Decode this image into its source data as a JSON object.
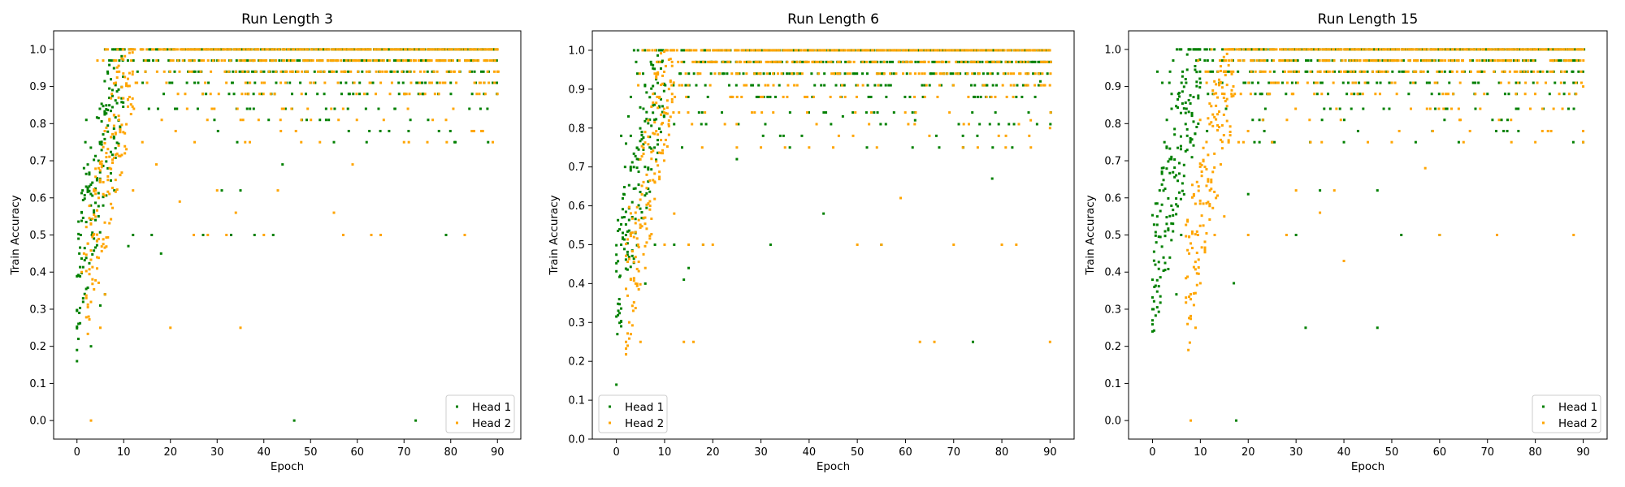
{
  "chart_data": [
    {
      "type": "scatter",
      "title": "Run Length 3",
      "xlabel": "Epoch",
      "ylabel": "Train Accuracy",
      "xlim": [
        -5,
        95
      ],
      "ylim": [
        -0.05,
        1.05
      ],
      "xticks": [
        0,
        10,
        20,
        30,
        40,
        50,
        60,
        70,
        80,
        90
      ],
      "yticks": [
        0.0,
        0.1,
        0.2,
        0.3,
        0.4,
        0.5,
        0.6,
        0.7,
        0.8,
        0.9,
        1.0
      ],
      "legend": "lower-right",
      "series": [
        {
          "name": "Head 1",
          "color": "#008000",
          "points": [
            [
              0,
              0.16
            ],
            [
              0,
              0.19
            ],
            [
              0.3,
              0.22
            ],
            [
              0.5,
              0.29
            ],
            [
              0.2,
              0.39
            ],
            [
              0.5,
              0.45
            ],
            [
              0.8,
              0.5
            ],
            [
              1,
              0.56
            ],
            [
              1.2,
              0.62
            ],
            [
              1.5,
              0.68
            ],
            [
              1.8,
              0.75
            ],
            [
              2,
              0.81
            ],
            [
              3,
              0.2
            ],
            [
              3.2,
              0.5
            ],
            [
              6,
              0.34
            ],
            [
              5,
              0.31
            ],
            [
              8,
              0.62
            ],
            [
              11,
              0.47
            ],
            [
              12,
              0.5
            ],
            [
              18,
              0.45
            ],
            [
              16,
              0.5
            ],
            [
              21,
              0.84
            ],
            [
              27,
              0.5
            ],
            [
              31,
              0.62
            ],
            [
              33,
              0.5
            ],
            [
              35,
              0.62
            ],
            [
              38,
              0.5
            ],
            [
              42,
              0.5
            ],
            [
              44,
              0.69
            ],
            [
              46.5,
              0.0
            ],
            [
              49,
              0.88
            ],
            [
              52,
              0.81
            ],
            [
              55,
              0.75
            ],
            [
              62,
              0.75
            ],
            [
              68,
              0.84
            ],
            [
              72.5,
              0.0
            ],
            [
              74,
              0.88
            ],
            [
              79,
              0.5
            ],
            [
              81,
              0.75
            ],
            [
              84,
              0.84
            ],
            [
              88,
              0.75
            ]
          ]
        },
        {
          "name": "Head 2",
          "color": "#FFA500",
          "points": [
            [
              1,
              0.4
            ],
            [
              1.5,
              0.45
            ],
            [
              2,
              0.33
            ],
            [
              2.5,
              0.28
            ],
            [
              3,
              0.0
            ],
            [
              3.5,
              0.5
            ],
            [
              4,
              0.62
            ],
            [
              5,
              0.25
            ],
            [
              6,
              0.34
            ],
            [
              7,
              0.68
            ],
            [
              9,
              0.81
            ],
            [
              12,
              0.62
            ],
            [
              14,
              0.75
            ],
            [
              17,
              0.69
            ],
            [
              20,
              0.25
            ],
            [
              22,
              0.59
            ],
            [
              25,
              0.5
            ],
            [
              28,
              0.5
            ],
            [
              30,
              0.62
            ],
            [
              32,
              0.5
            ],
            [
              34,
              0.56
            ],
            [
              35,
              0.25
            ],
            [
              37,
              0.75
            ],
            [
              40,
              0.5
            ],
            [
              43,
              0.62
            ],
            [
              48,
              0.75
            ],
            [
              52,
              0.75
            ],
            [
              55,
              0.56
            ],
            [
              57,
              0.5
            ],
            [
              59,
              0.69
            ],
            [
              63,
              0.5
            ],
            [
              65,
              0.5
            ],
            [
              70,
              0.75
            ],
            [
              75,
              0.75
            ],
            [
              79,
              0.81
            ],
            [
              83,
              0.5
            ],
            [
              85,
              0.78
            ],
            [
              89,
              0.75
            ],
            [
              90,
              0.88
            ],
            [
              90,
              0.94
            ]
          ]
        }
      ]
    },
    {
      "type": "scatter",
      "title": "Run Length 6",
      "xlabel": "Epoch",
      "ylabel": "Train Accuracy",
      "xlim": [
        -5,
        95
      ],
      "ylim": [
        0.0,
        1.05
      ],
      "xticks": [
        0,
        10,
        20,
        30,
        40,
        50,
        60,
        70,
        80,
        90
      ],
      "yticks": [
        0.0,
        0.1,
        0.2,
        0.3,
        0.4,
        0.5,
        0.6,
        0.7,
        0.8,
        0.9,
        1.0
      ],
      "legend": "lower-left",
      "series": [
        {
          "name": "Head 1",
          "color": "#008000",
          "points": [
            [
              0,
              0.14
            ],
            [
              0.2,
              0.27
            ],
            [
              0.4,
              0.33
            ],
            [
              0.6,
              0.36
            ],
            [
              0.8,
              0.42
            ],
            [
              1,
              0.5
            ],
            [
              1.2,
              0.57
            ],
            [
              1.5,
              0.63
            ],
            [
              1.8,
              0.7
            ],
            [
              2,
              0.76
            ],
            [
              2.5,
              0.83
            ],
            [
              3,
              0.88
            ],
            [
              6,
              0.4
            ],
            [
              8,
              0.5
            ],
            [
              12,
              0.5
            ],
            [
              14,
              0.41
            ],
            [
              15,
              0.44
            ],
            [
              18,
              0.5
            ],
            [
              25,
              0.72
            ],
            [
              32,
              0.5
            ],
            [
              36,
              0.75
            ],
            [
              43,
              0.58
            ],
            [
              47,
              0.83
            ],
            [
              52,
              0.75
            ],
            [
              55,
              0.5
            ],
            [
              62,
              0.82
            ],
            [
              67,
              0.75
            ],
            [
              74,
              0.25
            ],
            [
              78,
              0.67
            ],
            [
              83,
              0.88
            ],
            [
              88,
              0.92
            ]
          ]
        },
        {
          "name": "Head 2",
          "color": "#FFA500",
          "points": [
            [
              2,
              0.25
            ],
            [
              3,
              0.27
            ],
            [
              3.5,
              0.33
            ],
            [
              4,
              0.4
            ],
            [
              4.5,
              0.5
            ],
            [
              5,
              0.25
            ],
            [
              6,
              0.44
            ],
            [
              7,
              0.6
            ],
            [
              8,
              0.66
            ],
            [
              10,
              0.5
            ],
            [
              12,
              0.58
            ],
            [
              14,
              0.25
            ],
            [
              15,
              0.5
            ],
            [
              16,
              0.25
            ],
            [
              18,
              0.5
            ],
            [
              20,
              0.5
            ],
            [
              25,
              0.75
            ],
            [
              30,
              0.75
            ],
            [
              35,
              0.75
            ],
            [
              40,
              0.75
            ],
            [
              45,
              0.75
            ],
            [
              50,
              0.5
            ],
            [
              55,
              0.5
            ],
            [
              59,
              0.62
            ],
            [
              63,
              0.25
            ],
            [
              66,
              0.25
            ],
            [
              70,
              0.5
            ],
            [
              75,
              0.75
            ],
            [
              80,
              0.5
            ],
            [
              83,
              0.5
            ],
            [
              86,
              0.82
            ],
            [
              90,
              0.25
            ],
            [
              90,
              0.8
            ]
          ]
        }
      ]
    },
    {
      "type": "scatter",
      "title": "Run Length 15",
      "xlabel": "Epoch",
      "ylabel": "Train Accuracy",
      "xlim": [
        -5,
        95
      ],
      "ylim": [
        -0.05,
        1.05
      ],
      "xticks": [
        0,
        10,
        20,
        30,
        40,
        50,
        60,
        70,
        80,
        90
      ],
      "yticks": [
        0.0,
        0.1,
        0.2,
        0.3,
        0.4,
        0.5,
        0.6,
        0.7,
        0.8,
        0.9,
        1.0
      ],
      "legend": "lower-right",
      "series": [
        {
          "name": "Head 1",
          "color": "#008000",
          "points": [
            [
              0,
              0.24
            ],
            [
              0,
              0.27
            ],
            [
              0.2,
              0.3
            ],
            [
              0.4,
              0.36
            ],
            [
              0.6,
              0.42
            ],
            [
              0.8,
              0.48
            ],
            [
              1,
              0.55
            ],
            [
              1.5,
              0.62
            ],
            [
              2,
              0.68
            ],
            [
              2.5,
              0.75
            ],
            [
              3,
              0.81
            ],
            [
              4,
              0.88
            ],
            [
              5,
              0.34
            ],
            [
              6,
              0.5
            ],
            [
              17.5,
              0.0
            ],
            [
              17,
              0.37
            ],
            [
              20,
              0.61
            ],
            [
              25,
              0.75
            ],
            [
              30,
              0.5
            ],
            [
              32,
              0.25
            ],
            [
              35,
              0.62
            ],
            [
              40,
              0.75
            ],
            [
              47,
              0.25
            ],
            [
              47,
              0.62
            ],
            [
              52,
              0.5
            ],
            [
              55,
              0.75
            ],
            [
              60,
              0.5
            ],
            [
              64,
              0.75
            ],
            [
              70,
              0.88
            ],
            [
              76,
              0.84
            ],
            [
              83,
              0.88
            ],
            [
              88,
              0.91
            ]
          ]
        },
        {
          "name": "Head 2",
          "color": "#FFA500",
          "points": [
            [
              7.5,
              0.19
            ],
            [
              7.8,
              0.21
            ],
            [
              8,
              0.0
            ],
            [
              9,
              0.25
            ],
            [
              9.5,
              0.5
            ],
            [
              10,
              0.37
            ],
            [
              12,
              0.62
            ],
            [
              13,
              0.5
            ],
            [
              15,
              0.55
            ],
            [
              18,
              0.75
            ],
            [
              20,
              0.5
            ],
            [
              25,
              0.75
            ],
            [
              28,
              0.5
            ],
            [
              30,
              0.62
            ],
            [
              35,
              0.56
            ],
            [
              38,
              0.62
            ],
            [
              40,
              0.43
            ],
            [
              45,
              0.75
            ],
            [
              50,
              0.75
            ],
            [
              57,
              0.68
            ],
            [
              60,
              0.5
            ],
            [
              65,
              0.75
            ],
            [
              72,
              0.5
            ],
            [
              75,
              0.75
            ],
            [
              80,
              0.75
            ],
            [
              85,
              0.88
            ],
            [
              88,
              0.5
            ],
            [
              90,
              0.75
            ],
            [
              90,
              0.9
            ]
          ]
        }
      ]
    }
  ]
}
